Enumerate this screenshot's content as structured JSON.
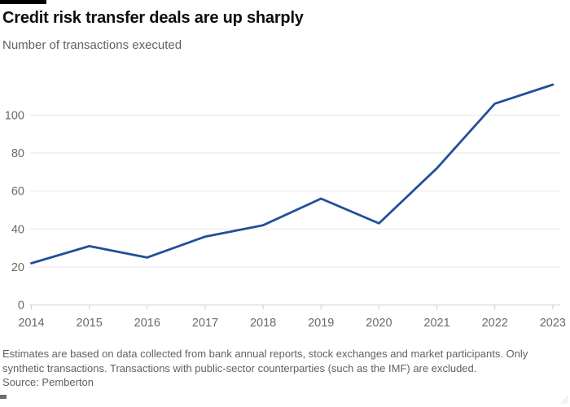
{
  "header": {
    "title": "Credit risk transfer deals are up sharply",
    "subtitle": "Number of transactions executed"
  },
  "chart_data": {
    "type": "line",
    "title": "Credit risk transfer deals are up sharply",
    "subtitle": "Number of transactions executed",
    "x": [
      2014,
      2015,
      2016,
      2017,
      2018,
      2019,
      2020,
      2021,
      2022,
      2023
    ],
    "series": [
      {
        "name": "Number of transactions executed",
        "values": [
          22,
          31,
          25,
          36,
          42,
          56,
          43,
          72,
          106,
          116
        ]
      }
    ],
    "xlabel": "",
    "ylabel": "",
    "ylim": [
      0,
      120
    ],
    "yticks": [
      0,
      20,
      40,
      60,
      80,
      100
    ],
    "grid": true,
    "legend": "none",
    "line_color": "#215099"
  },
  "footer": {
    "note_line1": "Estimates are based on data collected from bank annual reports, stock exchanges and market participants. Only",
    "note_line2": "synthetic transactions. Transactions with public-sector counterparties (such as the IMF) are excluded.",
    "source": "Source: Pemberton"
  },
  "colors": {
    "accent_bar": "#000000",
    "title_text": "#0d0d0d",
    "muted_text": "#66605c",
    "tick_text": "#6e6963",
    "gridline": "#e9e7e5",
    "axis_line": "#d5d2d0",
    "tick_mark": "#cfccca",
    "line": "#215099",
    "background": "#ffffff"
  }
}
